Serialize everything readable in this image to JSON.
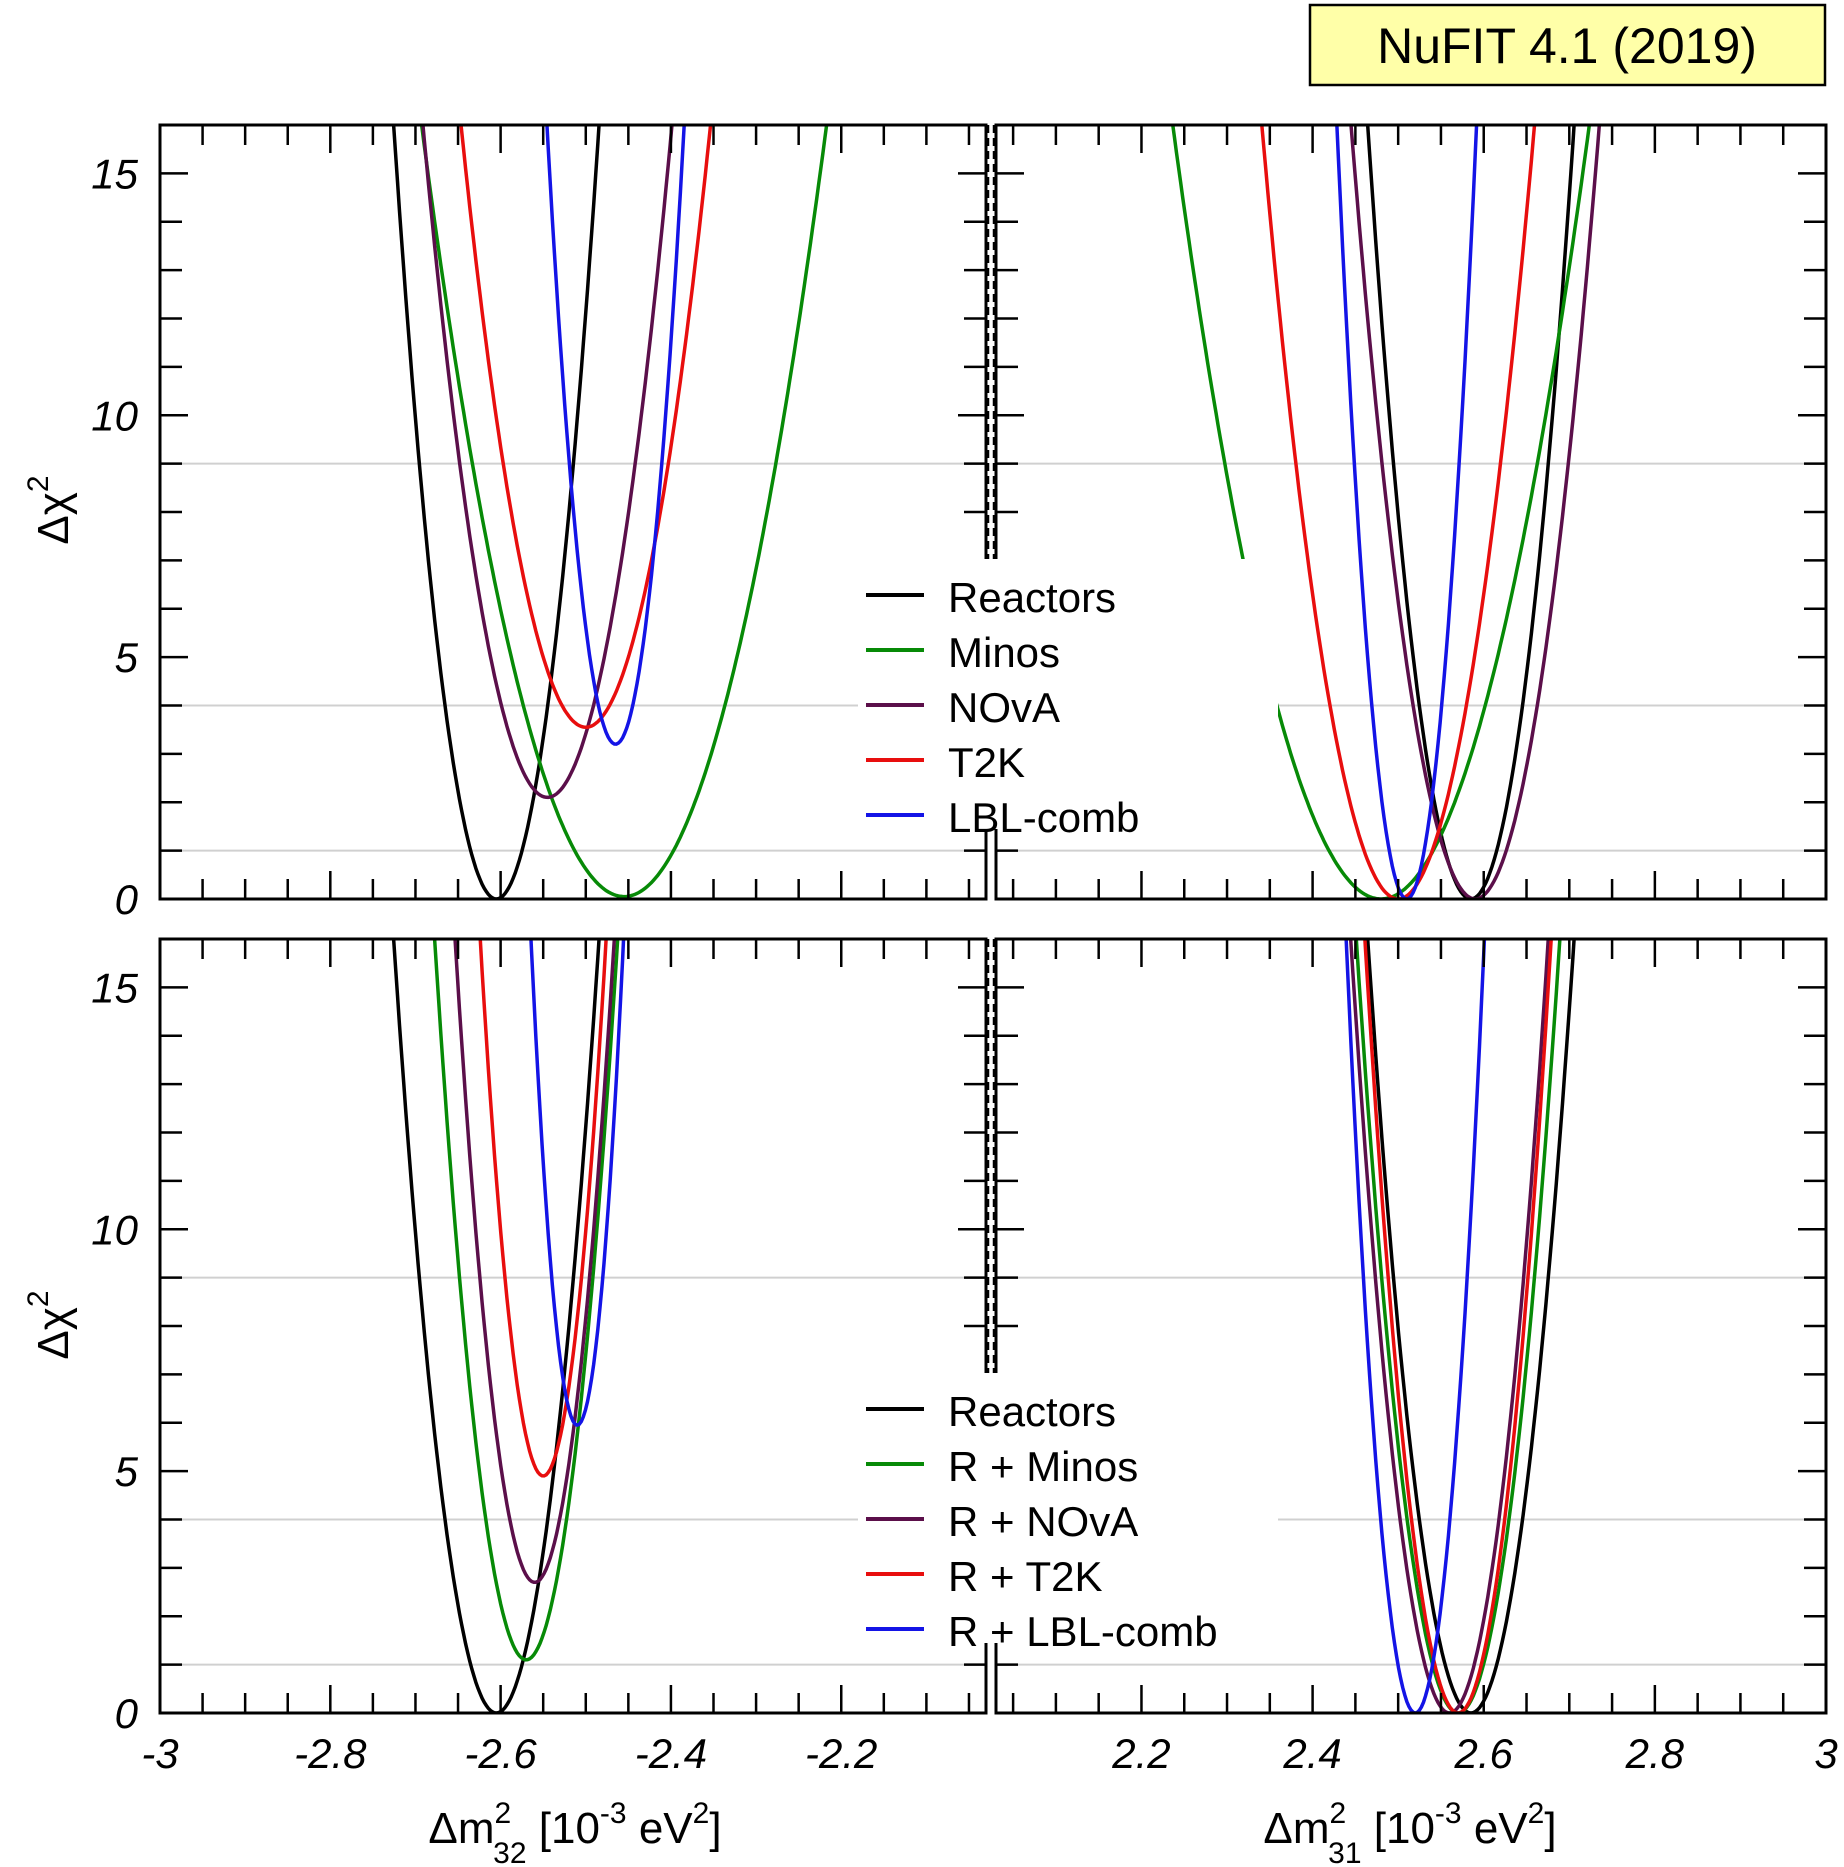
{
  "badge": {
    "label": "NuFIT 4.1 (2019)"
  },
  "colors": {
    "Reactors": "#000000",
    "Minos": "#078a07",
    "NOvA": "#5b0f4a",
    "T2K": "#e80e0e",
    "LBL": "#1414e6",
    "grid": "#d0d0d0",
    "badge_bg": "#ffffa8"
  },
  "chart_data": {
    "type": "line",
    "ylabel_top": "Δχ",
    "ylabel_sup": "2",
    "ylim": [
      0,
      16
    ],
    "yticks": [
      0,
      5,
      10,
      15
    ],
    "y_gridlines": [
      1,
      4,
      9
    ],
    "xlabel_left": {
      "main": "Δm",
      "sup": "2",
      "sub": "32",
      "rest": " [10",
      "exp": "-3",
      "unit": " eV",
      "unit_sup": "2",
      "close": "]"
    },
    "xlabel_right": {
      "main": "Δm",
      "sup": "2",
      "sub": "31",
      "rest": " [10",
      "exp": "-3",
      "unit": " eV",
      "unit_sup": "2",
      "close": "]"
    },
    "xlim_left": [
      -3,
      -2.03
    ],
    "xlim_right": [
      2.03,
      3
    ],
    "xticks_left": [
      "-3",
      "-2.8",
      "-2.6",
      "-2.4",
      "-2.2"
    ],
    "xticks_right": [
      "2.2",
      "2.4",
      "2.6",
      "2.8",
      "3"
    ],
    "panels": [
      {
        "row": "top",
        "legend": [
          "Reactors",
          "Minos",
          "NOvA",
          "T2K",
          "LBL-comb"
        ],
        "series": [
          {
            "name": "Reactors",
            "color_key": "Reactors",
            "left": {
              "center": -2.605,
              "min": 0.0,
              "curv": 1100
            },
            "right": {
              "center": 2.585,
              "min": 0.0,
              "curv": 1100
            }
          },
          {
            "name": "Minos",
            "color_key": "Minos",
            "left": {
              "center": -2.455,
              "min": 0.05,
              "curv": 282
            },
            "right": {
              "center": 2.48,
              "min": 0.0,
              "curv": 270
            }
          },
          {
            "name": "NOvA",
            "color_key": "NOvA",
            "left": {
              "center": -2.545,
              "min": 2.1,
              "curv": 650
            },
            "right": {
              "center": 2.59,
              "min": 0.0,
              "curv": 760
            }
          },
          {
            "name": "T2K",
            "color_key": "T2K",
            "left": {
              "center": -2.5,
              "min": 3.55,
              "curv": 580
            },
            "right": {
              "center": 2.5,
              "min": 0.0,
              "curv": 630
            }
          },
          {
            "name": "LBL-comb",
            "color_key": "LBL",
            "left": {
              "center": -2.465,
              "min": 3.2,
              "curv": 1970
            },
            "right": {
              "center": 2.51,
              "min": 0.0,
              "curv": 2400
            }
          }
        ]
      },
      {
        "row": "bottom",
        "legend": [
          "Reactors",
          "R + Minos",
          "R + NOvA",
          "R + T2K",
          "R + LBL-comb"
        ],
        "series": [
          {
            "name": "Reactors",
            "color_key": "Reactors",
            "left": {
              "center": -2.605,
              "min": 0.0,
              "curv": 1100
            },
            "right": {
              "center": 2.585,
              "min": 0.0,
              "curv": 1100
            }
          },
          {
            "name": "R + Minos",
            "color_key": "Minos",
            "left": {
              "center": -2.57,
              "min": 1.1,
              "curv": 1290
            },
            "right": {
              "center": 2.57,
              "min": 0.0,
              "curv": 1130
            }
          },
          {
            "name": "R + NOvA",
            "color_key": "NOvA",
            "left": {
              "center": -2.56,
              "min": 2.7,
              "curv": 1520
            },
            "right": {
              "center": 2.56,
              "min": 0.0,
              "curv": 1200
            }
          },
          {
            "name": "R + T2K",
            "color_key": "T2K",
            "left": {
              "center": -2.55,
              "min": 4.9,
              "curv": 2030
            },
            "right": {
              "center": 2.57,
              "min": 0.0,
              "curv": 1350
            }
          },
          {
            "name": "R + LBL-comb",
            "color_key": "LBL",
            "left": {
              "center": -2.51,
              "min": 5.95,
              "curv": 3400
            },
            "right": {
              "center": 2.52,
              "min": 0.0,
              "curv": 2450
            }
          }
        ]
      }
    ]
  }
}
